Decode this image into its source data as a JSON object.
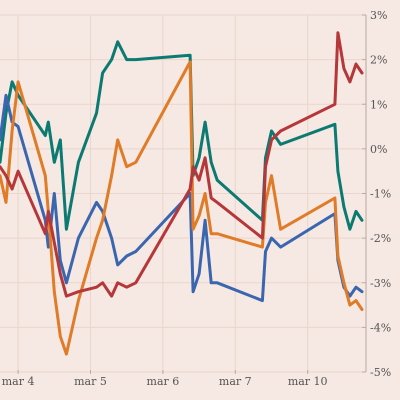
{
  "chart_data": {
    "type": "line",
    "title": "",
    "xlabel": "",
    "ylabel": "",
    "y_axis_position": "right",
    "grid": true,
    "legend": "none",
    "ylim": [
      -5,
      3
    ],
    "xlim": [
      "mar 3 18:00",
      "mar 10 18:00"
    ],
    "x_ticks": [
      {
        "label": "mar 4",
        "x": "mar 4"
      },
      {
        "label": "mar 5",
        "x": "mar 5"
      },
      {
        "label": "mar 6",
        "x": "mar 6"
      },
      {
        "label": "mar 7",
        "x": "mar 7"
      },
      {
        "label": "mar 10",
        "x": "mar 10"
      }
    ],
    "y_ticks": [
      {
        "label": "3%",
        "value": 3
      },
      {
        "label": "2%",
        "value": 2
      },
      {
        "label": "1%",
        "value": 1
      },
      {
        "label": "0%",
        "value": 0
      },
      {
        "label": "-1%",
        "value": -1
      },
      {
        "label": "-2%",
        "value": -2
      },
      {
        "label": "-3%",
        "value": -3
      },
      {
        "label": "-4%",
        "value": -4
      },
      {
        "label": "-5%",
        "value": -5
      }
    ],
    "series": [
      {
        "color": "#0b7a72",
        "x": [
          "mar 3 18:00",
          "mar 3 20:00",
          "mar 3 22:00",
          "mar 4 00:00",
          "mar 4 09:00",
          "mar 4 10:00",
          "mar 4 12:00",
          "mar 4 14:00",
          "mar 4 16:00",
          "mar 4 20:00",
          "mar 5 02:00",
          "mar 5 04:00",
          "mar 5 07:00",
          "mar 5 09:00",
          "mar 5 12:00",
          "mar 5 15:00",
          "mar 6 09:00",
          "mar 6 10:00",
          "mar 6 12:00",
          "mar 6 14:00",
          "mar 6 16:00",
          "mar 6 18:00",
          "mar 7 09:00",
          "mar 7 10:00",
          "mar 7 12:00",
          "mar 7 15:00",
          "mar 10 09:00",
          "mar 10 10:00",
          "mar 10 12:00",
          "mar 10 14:00",
          "mar 10 16:00",
          "mar 10 18:00"
        ],
        "y": [
          -0.3,
          0.8,
          1.5,
          1.2,
          0.3,
          0.6,
          -0.3,
          0.2,
          -1.8,
          -0.3,
          0.8,
          1.7,
          2.0,
          2.4,
          2.0,
          2.0,
          2.1,
          -0.6,
          -0.2,
          0.6,
          -0.3,
          -0.7,
          -1.6,
          -0.2,
          0.4,
          0.1,
          0.55,
          -0.5,
          -1.3,
          -1.8,
          -1.4,
          -1.6
        ]
      },
      {
        "color": "#3a66b0",
        "x": [
          "mar 3 18:00",
          "mar 3 20:00",
          "mar 3 22:00",
          "mar 4 00:00",
          "mar 4 09:00",
          "mar 4 10:00",
          "mar 4 12:00",
          "mar 4 14:00",
          "mar 4 16:00",
          "mar 4 20:00",
          "mar 5 02:00",
          "mar 5 04:00",
          "mar 5 07:00",
          "mar 5 09:00",
          "mar 5 12:00",
          "mar 5 15:00",
          "mar 6 09:00",
          "mar 6 10:00",
          "mar 6 12:00",
          "mar 6 14:00",
          "mar 6 16:00",
          "mar 6 18:00",
          "mar 7 09:00",
          "mar 7 10:00",
          "mar 7 12:00",
          "mar 7 15:00",
          "mar 10 09:00",
          "mar 10 10:00",
          "mar 10 12:00",
          "mar 10 14:00",
          "mar 10 16:00",
          "mar 10 18:00"
        ],
        "y": [
          0.2,
          1.2,
          0.6,
          0.5,
          -1.6,
          -2.2,
          -1.0,
          -2.5,
          -3.0,
          -2.0,
          -1.2,
          -1.4,
          -2.0,
          -2.6,
          -2.4,
          -2.3,
          -1.0,
          -3.2,
          -2.8,
          -1.6,
          -3.0,
          -3.0,
          -3.4,
          -2.3,
          -2.0,
          -2.2,
          -1.45,
          -2.5,
          -3.1,
          -3.3,
          -3.1,
          -3.2
        ]
      },
      {
        "color": "#e07b27",
        "x": [
          "mar 3 18:00",
          "mar 3 20:00",
          "mar 3 22:00",
          "mar 4 00:00",
          "mar 4 09:00",
          "mar 4 10:00",
          "mar 4 12:00",
          "mar 4 14:00",
          "mar 4 16:00",
          "mar 4 20:00",
          "mar 5 02:00",
          "mar 5 04:00",
          "mar 5 07:00",
          "mar 5 09:00",
          "mar 5 12:00",
          "mar 5 15:00",
          "mar 6 09:00",
          "mar 6 10:00",
          "mar 6 12:00",
          "mar 6 14:00",
          "mar 6 16:00",
          "mar 6 18:00",
          "mar 7 09:00",
          "mar 7 10:00",
          "mar 7 12:00",
          "mar 7 15:00",
          "mar 10 09:00",
          "mar 10 10:00",
          "mar 10 12:00",
          "mar 10 14:00",
          "mar 10 16:00",
          "mar 10 18:00"
        ],
        "y": [
          -0.6,
          -1.2,
          0.4,
          1.5,
          -0.6,
          -1.4,
          -3.2,
          -4.2,
          -4.6,
          -3.4,
          -2.0,
          -1.6,
          -0.6,
          0.2,
          -0.4,
          -0.3,
          1.95,
          -1.8,
          -1.5,
          -1.0,
          -1.9,
          -1.9,
          -2.2,
          -1.2,
          -0.6,
          -1.8,
          -1.1,
          -2.4,
          -3.0,
          -3.5,
          -3.4,
          -3.6
        ]
      },
      {
        "color": "#b5373a",
        "x": [
          "mar 3 18:00",
          "mar 3 20:00",
          "mar 3 22:00",
          "mar 4 00:00",
          "mar 4 09:00",
          "mar 4 10:00",
          "mar 4 12:00",
          "mar 4 14:00",
          "mar 4 16:00",
          "mar 4 20:00",
          "mar 5 02:00",
          "mar 5 04:00",
          "mar 5 07:00",
          "mar 5 09:00",
          "mar 5 12:00",
          "mar 5 15:00",
          "mar 6 09:00",
          "mar 6 10:00",
          "mar 6 12:00",
          "mar 6 14:00",
          "mar 6 16:00",
          "mar 6 18:00",
          "mar 7 09:00",
          "mar 7 10:00",
          "mar 7 12:00",
          "mar 7 15:00",
          "mar 10 09:00",
          "mar 10 10:00",
          "mar 10 12:00",
          "mar 10 14:00",
          "mar 10 16:00",
          "mar 10 18:00"
        ],
        "y": [
          -0.4,
          -0.6,
          -0.9,
          -0.5,
          -1.9,
          -1.4,
          -2.1,
          -2.8,
          -3.3,
          -3.2,
          -3.1,
          -3.0,
          -3.3,
          -3.0,
          -3.1,
          -3.0,
          -0.9,
          -0.4,
          -0.7,
          -0.2,
          -1.1,
          -1.2,
          -2.0,
          -0.4,
          0.2,
          0.4,
          1.0,
          2.6,
          1.8,
          1.5,
          1.9,
          1.7
        ]
      }
    ]
  }
}
